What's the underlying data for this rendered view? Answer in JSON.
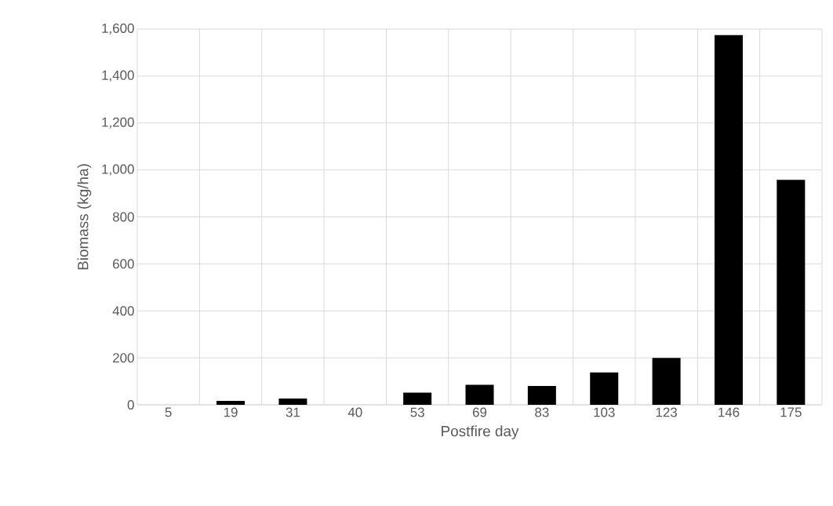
{
  "chart_data": {
    "type": "bar",
    "xlabel": "Postfire day",
    "ylabel": "Biomass (kg/ha)",
    "categories": [
      "5",
      "19",
      "31",
      "40",
      "53",
      "69",
      "83",
      "103",
      "123",
      "146",
      "175"
    ],
    "values": [
      0,
      17,
      27,
      0,
      52,
      85,
      80,
      138,
      200,
      1574,
      958
    ],
    "color": "#000000",
    "ylim": [
      0,
      1600
    ],
    "yticks": [
      {
        "value": 0,
        "label": "0"
      },
      {
        "value": 200,
        "label": "200"
      },
      {
        "value": 400,
        "label": "400"
      },
      {
        "value": 600,
        "label": "600"
      },
      {
        "value": 800,
        "label": "800"
      },
      {
        "value": 1000,
        "label": "1,000"
      },
      {
        "value": 1200,
        "label": "1,200"
      },
      {
        "value": 1400,
        "label": "1,400"
      },
      {
        "value": 1600,
        "label": "1,600"
      }
    ],
    "grid": true
  }
}
